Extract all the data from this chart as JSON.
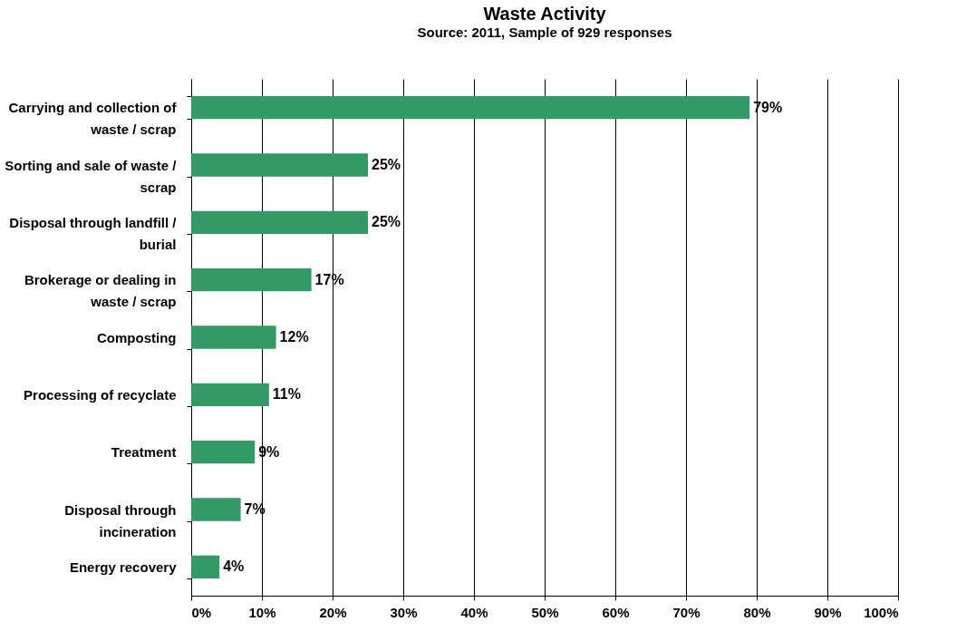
{
  "chart_data": {
    "type": "bar",
    "orientation": "horizontal",
    "title": "Waste Activity",
    "subtitle": "Source: 2011, Sample of 929 responses",
    "categories": [
      "Carrying and collection of waste / scrap",
      "Sorting and sale of waste / scrap",
      "Disposal through landfill / burial",
      "Brokerage or dealing in waste / scrap",
      "Composting",
      "Processing of recyclate",
      "Treatment",
      "Disposal through incineration",
      "Energy recovery"
    ],
    "values": [
      79,
      25,
      25,
      17,
      12,
      11,
      9,
      7,
      4
    ],
    "value_labels": [
      "79%",
      "25%",
      "25%",
      "17%",
      "12%",
      "11%",
      "9%",
      "7%",
      "4%"
    ],
    "color": "#339966",
    "xlim": [
      0,
      100
    ],
    "xticks": [
      {
        "value": 0,
        "label": "0%"
      },
      {
        "value": 10,
        "label": "10%"
      },
      {
        "value": 20,
        "label": "20%"
      },
      {
        "value": 30,
        "label": "30%"
      },
      {
        "value": 40,
        "label": "40%"
      },
      {
        "value": 50,
        "label": "50%"
      },
      {
        "value": 60,
        "label": "60%"
      },
      {
        "value": 70,
        "label": "70%"
      },
      {
        "value": 80,
        "label": "80%"
      },
      {
        "value": 90,
        "label": "90%"
      },
      {
        "value": 100,
        "label": "100%"
      }
    ],
    "grid": "x"
  }
}
